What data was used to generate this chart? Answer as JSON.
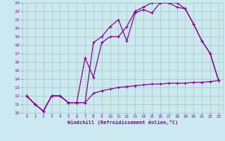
{
  "title": "",
  "xlabel": "Windchill (Refroidissement éolien,°C)",
  "bg_color": "#cce8f0",
  "grid_color": "#aaccbb",
  "line_color": "#880088",
  "xlim": [
    -0.5,
    23.5
  ],
  "ylim": [
    10,
    23
  ],
  "xticks": [
    0,
    1,
    2,
    3,
    4,
    5,
    6,
    7,
    8,
    9,
    10,
    11,
    12,
    13,
    14,
    15,
    16,
    17,
    18,
    19,
    20,
    21,
    22,
    23
  ],
  "yticks": [
    10,
    11,
    12,
    13,
    14,
    15,
    16,
    17,
    18,
    19,
    20,
    21,
    22,
    23
  ],
  "line1_x": [
    0,
    1,
    2,
    3,
    4,
    5,
    6,
    7,
    8,
    9,
    10,
    11,
    12,
    13,
    14,
    15,
    16,
    17,
    18,
    19,
    20,
    21,
    22,
    23
  ],
  "line1_y": [
    12,
    11,
    10.2,
    12,
    12,
    11.2,
    11.2,
    11.2,
    18.3,
    19.0,
    20.2,
    21.0,
    18.5,
    21.8,
    22.2,
    21.8,
    23.0,
    23.0,
    23.0,
    22.3,
    20.5,
    18.5,
    17.0,
    13.8
  ],
  "line2_x": [
    0,
    1,
    2,
    3,
    4,
    5,
    6,
    7,
    8,
    9,
    10,
    11,
    12,
    13,
    14,
    15,
    16,
    17,
    18,
    19,
    20,
    21,
    22,
    23
  ],
  "line2_y": [
    12,
    11,
    10.2,
    12,
    12,
    11.2,
    11.2,
    16.5,
    14.2,
    18.3,
    19.0,
    19.0,
    20.2,
    22.0,
    22.5,
    23.0,
    23.0,
    23.0,
    22.5,
    22.3,
    20.5,
    18.5,
    17.0,
    13.8
  ],
  "line3_x": [
    0,
    1,
    2,
    3,
    4,
    5,
    6,
    7,
    8,
    9,
    10,
    11,
    12,
    13,
    14,
    15,
    16,
    17,
    18,
    19,
    20,
    21,
    22,
    23
  ],
  "line3_y": [
    12,
    11,
    10.2,
    12,
    12,
    11.2,
    11.2,
    11.2,
    12.3,
    12.6,
    12.8,
    13.0,
    13.1,
    13.2,
    13.3,
    13.4,
    13.4,
    13.5,
    13.5,
    13.5,
    13.6,
    13.6,
    13.7,
    13.8
  ]
}
